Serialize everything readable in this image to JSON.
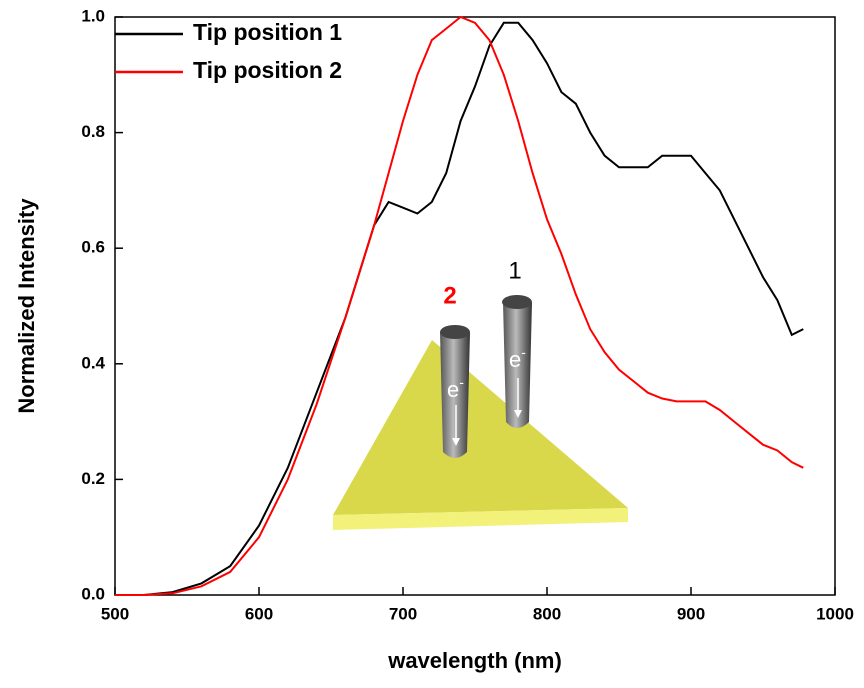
{
  "chart_data": {
    "type": "line",
    "xlabel": "wavelength (nm)",
    "ylabel": "Normalized Intensity",
    "x": [
      500,
      520,
      540,
      560,
      580,
      600,
      620,
      640,
      660,
      670,
      680,
      690,
      700,
      710,
      720,
      730,
      740,
      750,
      760,
      770,
      780,
      790,
      800,
      810,
      820,
      830,
      840,
      850,
      860,
      870,
      880,
      890,
      900,
      910,
      920,
      930,
      940,
      950,
      960,
      970,
      978
    ],
    "series": [
      {
        "name": "Tip position 1",
        "color": "#000000",
        "values": [
          0,
          0,
          0.005,
          0.02,
          0.05,
          0.12,
          0.22,
          0.35,
          0.48,
          0.56,
          0.64,
          0.68,
          0.67,
          0.66,
          0.68,
          0.73,
          0.82,
          0.88,
          0.95,
          0.99,
          0.99,
          0.96,
          0.92,
          0.87,
          0.85,
          0.8,
          0.76,
          0.74,
          0.74,
          0.74,
          0.76,
          0.76,
          0.76,
          0.73,
          0.7,
          0.65,
          0.6,
          0.55,
          0.51,
          0.45,
          0.46
        ]
      },
      {
        "name": "Tip position 2",
        "color": "#ff0000",
        "values": [
          0,
          0,
          0.003,
          0.015,
          0.04,
          0.1,
          0.2,
          0.33,
          0.48,
          0.56,
          0.64,
          0.73,
          0.82,
          0.9,
          0.96,
          0.98,
          1,
          0.99,
          0.96,
          0.9,
          0.82,
          0.73,
          0.65,
          0.59,
          0.52,
          0.46,
          0.42,
          0.39,
          0.37,
          0.35,
          0.34,
          0.335,
          0.335,
          0.335,
          0.32,
          0.3,
          0.28,
          0.26,
          0.25,
          0.23,
          0.22
        ]
      }
    ],
    "xlim": [
      500,
      1000
    ],
    "xticks": [
      500,
      600,
      700,
      800,
      900,
      1000
    ],
    "ylim": [
      0,
      1
    ],
    "yticks": [
      {
        "value": 0,
        "label": "0.0"
      },
      0.2,
      0.4,
      0.6,
      0.8,
      {
        "value": 1,
        "label": "1.0"
      }
    ],
    "legend": "top-left",
    "annotations": [
      {
        "text": "2",
        "color": "#ff0000"
      },
      {
        "text": "1",
        "color": "#000000"
      }
    ],
    "tip_label": "e",
    "tip_label_sup": "-"
  }
}
